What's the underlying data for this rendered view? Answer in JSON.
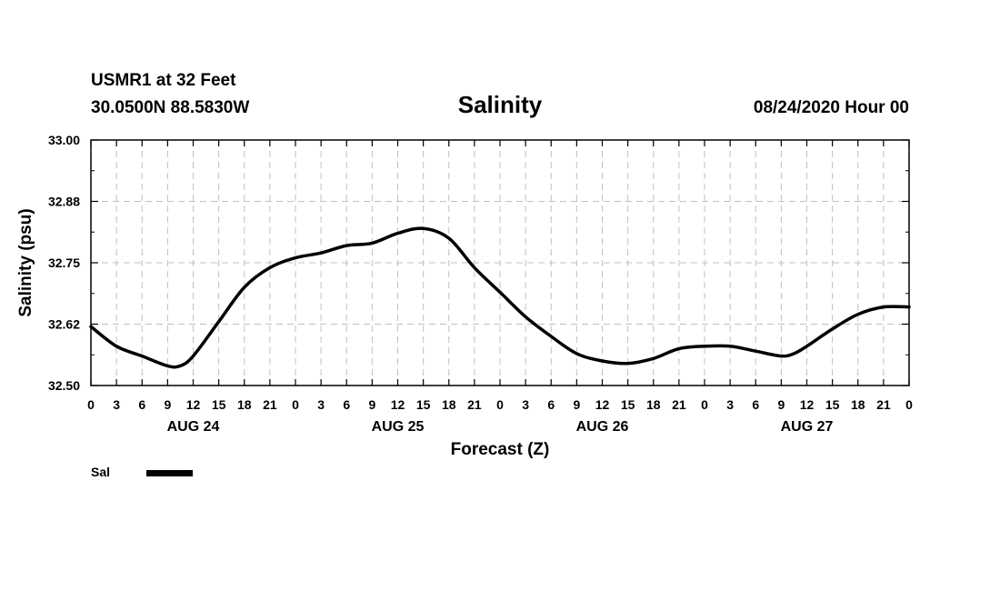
{
  "header": {
    "station": "USMR1 at 32 Feet",
    "coords": "30.0500N 88.5830W",
    "title": "Salinity",
    "datetime": "08/24/2020 Hour 00"
  },
  "chart_data": {
    "type": "line",
    "title": "Salinity",
    "xlabel": "Forecast (Z)",
    "ylabel": "Salinity (psu)",
    "ylim": [
      32.5,
      33.0
    ],
    "xlim": [
      0,
      96
    ],
    "y_ticks": [
      "33.00",
      "32.88",
      "32.75",
      "32.62",
      "32.50"
    ],
    "y_tick_values": [
      33.0,
      32.875,
      32.75,
      32.625,
      32.5
    ],
    "x_tick_labels": [
      "0",
      "3",
      "6",
      "9",
      "12",
      "15",
      "18",
      "21",
      "0",
      "3",
      "6",
      "9",
      "12",
      "15",
      "18",
      "21",
      "0",
      "3",
      "6",
      "9",
      "12",
      "15",
      "18",
      "21",
      "0",
      "3",
      "6",
      "9",
      "12",
      "15",
      "18",
      "21",
      "0"
    ],
    "day_labels": [
      {
        "label": "AUG 24",
        "hour": 12
      },
      {
        "label": "AUG 25",
        "hour": 36
      },
      {
        "label": "AUG 26",
        "hour": 60
      },
      {
        "label": "AUG 27",
        "hour": 84
      }
    ],
    "grid": true,
    "legend_position": "bottom-left",
    "series": [
      {
        "name": "Sal",
        "color": "#000000",
        "x": [
          0,
          3,
          6,
          9,
          10.5,
          12,
          15,
          18,
          21,
          24,
          27,
          30,
          33,
          36,
          39,
          42,
          45,
          48,
          51,
          54,
          57,
          60,
          63,
          66,
          69,
          72,
          75,
          78,
          81,
          82.5,
          84,
          87,
          90,
          93,
          96
        ],
        "y": [
          32.62,
          32.58,
          32.56,
          32.54,
          32.54,
          32.56,
          32.63,
          32.7,
          32.74,
          32.76,
          32.77,
          32.785,
          32.79,
          32.81,
          32.82,
          32.8,
          32.74,
          32.69,
          32.64,
          32.6,
          32.565,
          32.55,
          32.545,
          32.555,
          32.575,
          32.58,
          32.58,
          32.57,
          32.56,
          32.565,
          32.58,
          32.615,
          32.645,
          32.66,
          32.66
        ]
      }
    ]
  }
}
